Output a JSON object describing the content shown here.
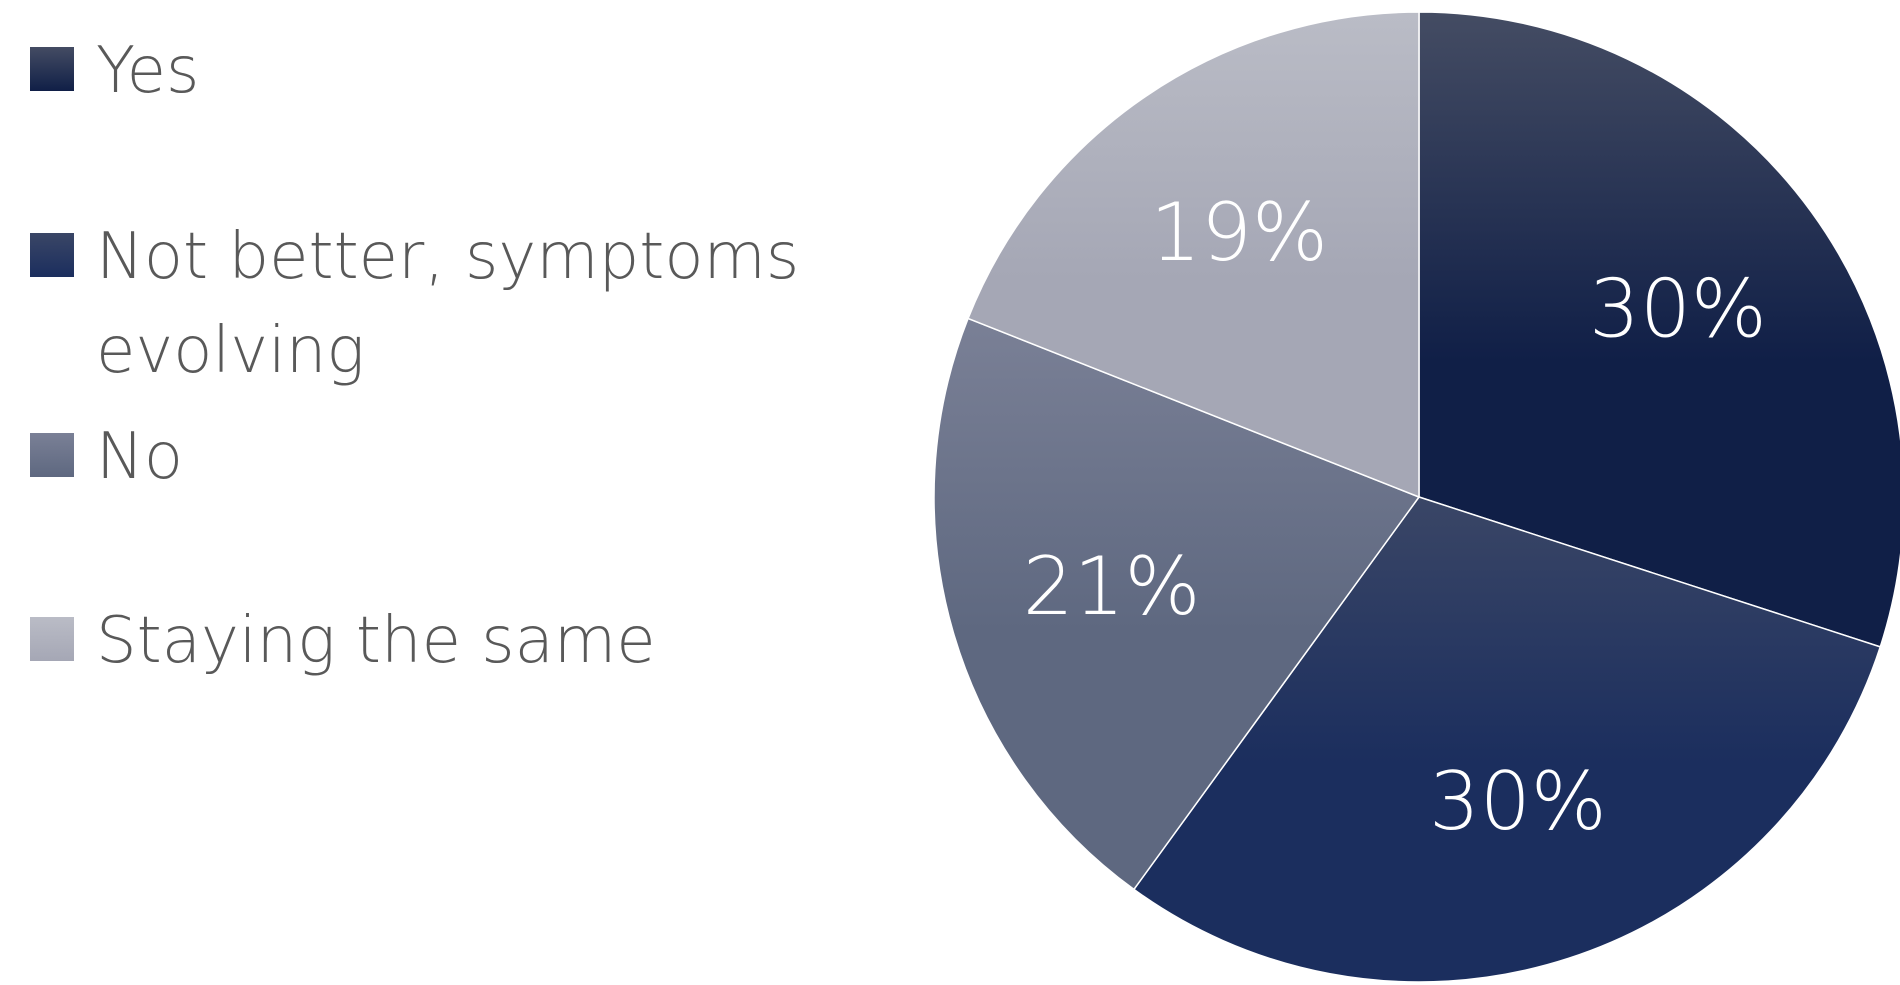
{
  "chart_data": {
    "type": "pie",
    "title": "",
    "categories": [
      "Yes",
      "Not better, symptoms evolving",
      "No",
      "Staying the same"
    ],
    "values": [
      30,
      30,
      21,
      19
    ],
    "data_labels": [
      "30%",
      "30%",
      "21%",
      "19%"
    ],
    "legend": {
      "placement": "left",
      "entries": [
        "Yes",
        "Not better, symptoms evolving",
        "No",
        "Staying the same"
      ]
    },
    "colors": [
      "#101f47",
      "#1b2e5e",
      "#5e6880",
      "#a5a7b5"
    ],
    "gradient_tops": [
      "#444c63",
      "#3a4666",
      "#7a8096",
      "#babcc6"
    ]
  }
}
